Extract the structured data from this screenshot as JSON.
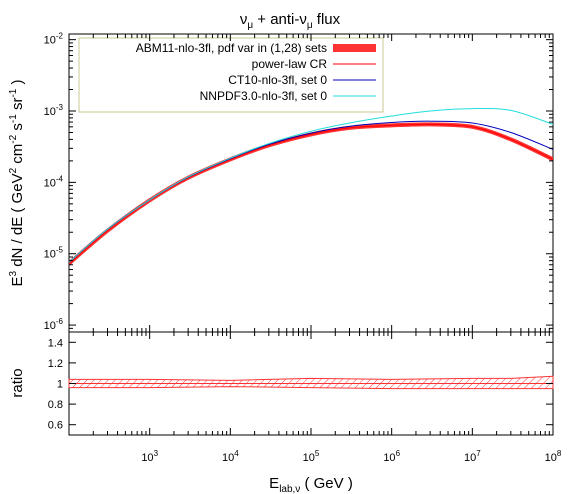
{
  "chart_data": [
    {
      "type": "line",
      "title": {
        "main": "ν",
        "sub": "μ",
        "rest": " + anti-ν",
        "sub2": "μ",
        "tail": "  flux"
      },
      "ylabel": {
        "prefix": "E",
        "sup1": "3",
        "mid": " dN / dE    ( GeV",
        "sup2": "2",
        "mid2": " cm",
        "sup3": "-2",
        "mid3": " s",
        "sup4": "-1",
        "mid4": " sr",
        "sup5": "-1",
        "end": " )"
      },
      "x_scale": "log",
      "y_scale": "log",
      "xlim": [
        100,
        100000000
      ],
      "ylim": [
        8e-07,
        0.012
      ],
      "y_ticks": [
        {
          "value": 1e-06,
          "base": "10",
          "exp": "-6"
        },
        {
          "value": 1e-05,
          "base": "10",
          "exp": "-5"
        },
        {
          "value": 0.0001,
          "base": "10",
          "exp": "-4"
        },
        {
          "value": 0.001,
          "base": "10",
          "exp": "-3"
        },
        {
          "value": 0.01,
          "base": "10",
          "exp": "-2"
        }
      ],
      "legend_position": "top-left",
      "series": [
        {
          "name": "ABM11-nlo-3fl, pdf var in (1,28) sets",
          "color": "#ff3333",
          "style": "band",
          "x": [
            100,
            300,
            1000,
            3000,
            10000,
            30000,
            100000,
            300000,
            1000000,
            3000000,
            10000000,
            30000000,
            100000000
          ],
          "y": [
            7.3e-06,
            2.1e-05,
            5.6e-05,
            0.000116,
            0.00021,
            0.00033,
            0.00047,
            0.00058,
            0.00063,
            0.00065,
            0.0006,
            0.0004,
            0.00021
          ]
        },
        {
          "name": "power-law CR",
          "color": "#ff0000",
          "style": "line",
          "x": [
            100,
            300,
            1000,
            3000,
            10000,
            30000,
            100000,
            300000,
            1000000,
            3000000,
            10000000,
            30000000,
            100000000
          ],
          "y": [
            7.3e-06,
            2.1e-05,
            5.6e-05,
            0.000116,
            0.00021,
            0.00033,
            0.00047,
            0.00058,
            0.00063,
            0.00065,
            0.0006,
            0.0004,
            0.00021
          ]
        },
        {
          "name": "CT10-nlo-3fl, set 0",
          "color": "#0000bb",
          "style": "line",
          "x": [
            100,
            300,
            1000,
            3000,
            10000,
            30000,
            100000,
            300000,
            1000000,
            3000000,
            10000000,
            30000000,
            100000000
          ],
          "y": [
            7.6e-06,
            2.2e-05,
            5.7e-05,
            0.000118,
            0.000215,
            0.00034,
            0.00049,
            0.00061,
            0.00069,
            0.00072,
            0.00068,
            0.0005,
            0.00029
          ]
        },
        {
          "name": "NNPDF3.0-nlo-3fl, set 0",
          "color": "#22dddd",
          "style": "line",
          "x": [
            100,
            300,
            1000,
            3000,
            10000,
            30000,
            100000,
            300000,
            1000000,
            3000000,
            10000000,
            30000000,
            100000000
          ],
          "y": [
            7.6e-06,
            2.2e-05,
            5.7e-05,
            0.000119,
            0.000218,
            0.00035,
            0.00052,
            0.00068,
            0.00085,
            0.001,
            0.00108,
            0.00102,
            0.00065
          ]
        }
      ]
    },
    {
      "type": "area",
      "ylabel": "ratio",
      "xlabel": {
        "main": "E",
        "sub": "lab,ν",
        "rest": "    ( GeV )"
      },
      "x_scale": "log",
      "xlim": [
        100,
        100000000
      ],
      "ylim": [
        0.5,
        1.5
      ],
      "y_ticks": [
        "0.6",
        "0.8",
        "1",
        "1.2",
        "1.4"
      ],
      "x_ticks": [
        {
          "value": 1000,
          "base": "10",
          "exp": "3"
        },
        {
          "value": 10000,
          "base": "10",
          "exp": "4"
        },
        {
          "value": 100000,
          "base": "10",
          "exp": "5"
        },
        {
          "value": 1000000,
          "base": "10",
          "exp": "6"
        },
        {
          "value": 10000000,
          "base": "10",
          "exp": "7"
        },
        {
          "value": 100000000,
          "base": "10",
          "exp": "8"
        }
      ],
      "band": {
        "color": "#ff3333",
        "x": [
          100,
          1000,
          10000,
          100000,
          1000000,
          10000000,
          30000000,
          100000000
        ],
        "upper": [
          1.04,
          1.04,
          1.03,
          1.05,
          1.04,
          1.05,
          1.05,
          1.07
        ],
        "lower": [
          0.96,
          0.96,
          0.97,
          0.96,
          0.95,
          0.95,
          0.95,
          0.95
        ]
      }
    }
  ]
}
